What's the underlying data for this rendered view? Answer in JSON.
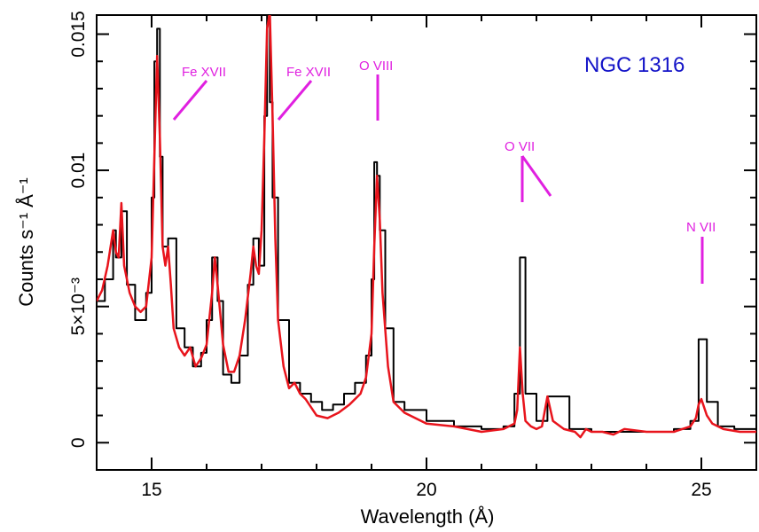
{
  "chart_data": {
    "type": "line",
    "object_label": "NGC 1316",
    "xlabel": "Wavelength (Å)",
    "ylabel": "Counts s⁻¹ Å⁻¹",
    "xlim": [
      14.0,
      26.0
    ],
    "ylim": [
      -0.001,
      0.0157
    ],
    "x_ticks": [
      {
        "value": 15,
        "label": "15"
      },
      {
        "value": 20,
        "label": "20"
      },
      {
        "value": 25,
        "label": "25"
      }
    ],
    "y_ticks": [
      {
        "value": 0,
        "label": "0"
      },
      {
        "value": 0.005,
        "label": "5×10⁻³"
      },
      {
        "value": 0.01,
        "label": "0.01"
      },
      {
        "value": 0.015,
        "label": "0.015"
      }
    ],
    "grid": false,
    "colors": {
      "data": "#000000",
      "model": "#e8141c",
      "annotation": "#e020e0",
      "object_label": "#1414c8"
    },
    "series": [
      {
        "style": "histogram",
        "color": "#000000",
        "x": [
          14.0,
          14.15,
          14.3,
          14.35,
          14.45,
          14.55,
          14.7,
          14.9,
          15.0,
          15.05,
          15.1,
          15.15,
          15.2,
          15.3,
          15.45,
          15.6,
          15.75,
          15.9,
          16.0,
          16.1,
          16.2,
          16.3,
          16.45,
          16.6,
          16.75,
          16.85,
          16.95,
          17.05,
          17.1,
          17.15,
          17.2,
          17.3,
          17.5,
          17.7,
          17.9,
          18.1,
          18.3,
          18.5,
          18.7,
          18.9,
          19.0,
          19.05,
          19.1,
          19.15,
          19.25,
          19.4,
          19.6,
          20.0,
          20.5,
          21.0,
          21.4,
          21.6,
          21.7,
          21.8,
          22.0,
          22.2,
          22.6,
          23.0,
          23.5,
          24.0,
          24.5,
          24.8,
          24.95,
          25.1,
          25.3,
          25.6,
          26.0
        ],
        "y": [
          0.0052,
          0.006,
          0.0078,
          0.0068,
          0.0085,
          0.0058,
          0.0045,
          0.0055,
          0.009,
          0.014,
          0.0152,
          0.0105,
          0.0072,
          0.0075,
          0.0042,
          0.0035,
          0.0028,
          0.0033,
          0.0045,
          0.0068,
          0.0052,
          0.0025,
          0.0022,
          0.0032,
          0.0058,
          0.0075,
          0.0065,
          0.012,
          0.0158,
          0.0125,
          0.009,
          0.0045,
          0.0022,
          0.0018,
          0.0015,
          0.0012,
          0.0014,
          0.0018,
          0.0022,
          0.0032,
          0.006,
          0.0103,
          0.0098,
          0.0078,
          0.0042,
          0.0015,
          0.0012,
          0.0008,
          0.0006,
          0.0005,
          0.0006,
          0.0018,
          0.0068,
          0.0018,
          0.0008,
          0.0017,
          0.0005,
          0.0004,
          0.0004,
          0.0004,
          0.0005,
          0.0008,
          0.0038,
          0.0015,
          0.0006,
          0.0005,
          0.0004
        ]
      },
      {
        "style": "line",
        "color": "#e8141c",
        "x": [
          14.0,
          14.1,
          14.2,
          14.3,
          14.35,
          14.4,
          14.45,
          14.5,
          14.6,
          14.7,
          14.8,
          14.9,
          15.0,
          15.05,
          15.1,
          15.15,
          15.2,
          15.25,
          15.3,
          15.35,
          15.4,
          15.5,
          15.6,
          15.7,
          15.8,
          15.9,
          16.0,
          16.1,
          16.15,
          16.2,
          16.3,
          16.4,
          16.5,
          16.6,
          16.7,
          16.8,
          16.85,
          16.9,
          16.95,
          17.0,
          17.05,
          17.1,
          17.15,
          17.2,
          17.25,
          17.3,
          17.4,
          17.5,
          17.6,
          17.7,
          17.8,
          17.9,
          18.0,
          18.2,
          18.4,
          18.6,
          18.8,
          18.9,
          19.0,
          19.05,
          19.1,
          19.15,
          19.2,
          19.3,
          19.4,
          19.6,
          20.0,
          20.5,
          21.0,
          21.4,
          21.6,
          21.65,
          21.7,
          21.75,
          21.8,
          21.9,
          22.0,
          22.1,
          22.2,
          22.3,
          22.5,
          22.7,
          22.8,
          22.9,
          23.0,
          23.2,
          23.4,
          23.6,
          24.0,
          24.5,
          24.8,
          24.9,
          24.95,
          25.0,
          25.1,
          25.2,
          25.4,
          25.7,
          26.0
        ],
        "y": [
          0.0052,
          0.0056,
          0.0065,
          0.0078,
          0.007,
          0.0068,
          0.0088,
          0.0065,
          0.0055,
          0.005,
          0.0048,
          0.005,
          0.0068,
          0.0105,
          0.0142,
          0.0112,
          0.0072,
          0.0065,
          0.0072,
          0.0058,
          0.0042,
          0.0035,
          0.0032,
          0.0035,
          0.0028,
          0.0031,
          0.0036,
          0.0055,
          0.0068,
          0.0058,
          0.0036,
          0.0026,
          0.0026,
          0.0032,
          0.0045,
          0.0062,
          0.0072,
          0.0065,
          0.0062,
          0.0078,
          0.0112,
          0.0152,
          0.0158,
          0.012,
          0.0075,
          0.0045,
          0.0028,
          0.002,
          0.0022,
          0.0018,
          0.0016,
          0.0013,
          0.001,
          0.0009,
          0.0011,
          0.0014,
          0.0018,
          0.0024,
          0.004,
          0.0072,
          0.0098,
          0.0082,
          0.0055,
          0.0028,
          0.0015,
          0.0011,
          0.0007,
          0.0006,
          0.0004,
          0.0005,
          0.0007,
          0.0012,
          0.0035,
          0.0018,
          0.0008,
          0.0006,
          0.0005,
          0.0006,
          0.0017,
          0.0008,
          0.0005,
          0.0004,
          0.0002,
          0.0005,
          0.0004,
          0.0004,
          0.0003,
          0.0005,
          0.0004,
          0.0004,
          0.0006,
          0.0009,
          0.0014,
          0.0016,
          0.001,
          0.0007,
          0.0005,
          0.0004,
          0.0004
        ]
      }
    ],
    "annotations": [
      {
        "text": "Fe XVII",
        "points_at_x": 15.4
      },
      {
        "text": "Fe XVII",
        "points_at_x": 17.3
      },
      {
        "text": "O VIII",
        "points_at_x": 19.1
      },
      {
        "text": "O VII",
        "points_at_x": 21.7
      },
      {
        "text": "N VII",
        "points_at_x": 25.0
      }
    ]
  }
}
